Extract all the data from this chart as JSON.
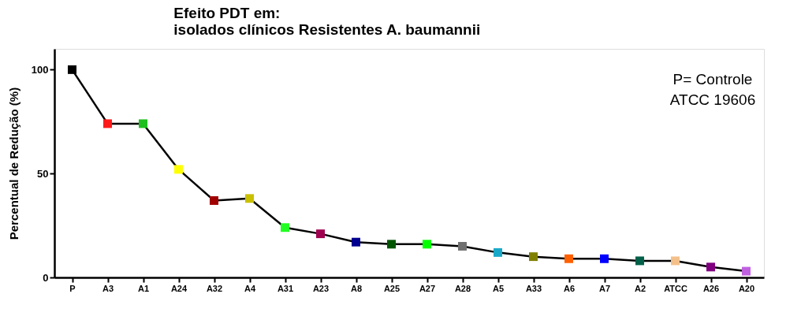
{
  "chart_data": {
    "type": "line",
    "title": "Efeito PDT em:\nisolados clínicos Resistentes A. baumannii",
    "ylabel": "Percentual de Redução (%)",
    "categories": [
      "P",
      "A3",
      "A1",
      "A24",
      "A32",
      "A4",
      "A31",
      "A23",
      "A8",
      "A25",
      "A27",
      "A28",
      "A5",
      "A33",
      "A6",
      "A7",
      "A2",
      "ATCC",
      "A26",
      "A20"
    ],
    "values": [
      100,
      74,
      74,
      52,
      37,
      38,
      24,
      21,
      17,
      16,
      16,
      15,
      12,
      10,
      9,
      9,
      8,
      8,
      5,
      3
    ],
    "colors": [
      "#000000",
      "#ff1a1a",
      "#1fbf1f",
      "#ffff00",
      "#a00000",
      "#c8c000",
      "#22ff22",
      "#a00050",
      "#000090",
      "#005500",
      "#00ff00",
      "#707070",
      "#1aa8c8",
      "#808000",
      "#ff6000",
      "#0000ff",
      "#006048",
      "#f4c08a",
      "#800080",
      "#c060e0"
    ],
    "color": "#000000",
    "ylim": [
      0,
      110
    ],
    "yticks": [
      0,
      50,
      100
    ],
    "grid": false,
    "legend": false,
    "marker": "square",
    "line_style": "solid",
    "annotations": [
      "P= Controle\nATCC 19606"
    ]
  }
}
